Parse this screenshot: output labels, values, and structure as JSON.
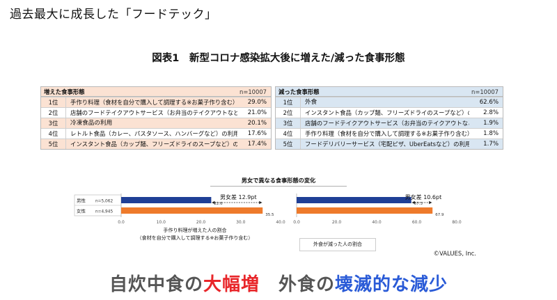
{
  "page_title": "過去最大に成長した「フードテック」",
  "figure_title": "図表1　新型コロナ感染拡大後に増えた/減った食事形態",
  "increased_table": {
    "title": "増えた食事形態",
    "n": "n=10007",
    "rows": [
      {
        "rank": "1位",
        "item": "手作り料理（食材を自分で購入して調理する※お菓子作り含む）",
        "pct": "29.0%"
      },
      {
        "rank": "2位",
        "item": "店舗のフードテイクアウトサービス（お弁当のテイクアウトなど）の利用",
        "pct": "21.0%"
      },
      {
        "rank": "3位",
        "item": "冷凍食品の利用",
        "pct": "20.1%"
      },
      {
        "rank": "4位",
        "item": "レトルト食品（カレー、パスタソース、ハンバーグなど）の利用",
        "pct": "17.6%"
      },
      {
        "rank": "5位",
        "item": "インスタント食品（カップ麺、フリーズドライのスープなど）の利用",
        "pct": "17.4%"
      }
    ]
  },
  "decreased_table": {
    "title": "減った食事形態",
    "n": "n=10007",
    "rows": [
      {
        "rank": "1位",
        "item": "外食",
        "pct": "62.6%"
      },
      {
        "rank": "2位",
        "item": "インスタント食品（カップ麺、フリーズドライのスープなど）の利用",
        "pct": "2.8%"
      },
      {
        "rank": "3位",
        "item": "店舗のフードテイクアウトサービス（お弁当のテイクアウトなど）の利用",
        "pct": "1.9%"
      },
      {
        "rank": "4位",
        "item": "手作り料理（食材を自分で購入して調理する※お菓子作り含む）",
        "pct": "1.8%"
      },
      {
        "rank": "5位",
        "item": "フードデリバリーサービス（宅配ピザ、UberEatsなど）の利用",
        "pct": "1.7%"
      }
    ]
  },
  "chart_title": "男女で異なる食事形態の変化",
  "chart_caption_left_line1": "手作り料理が増えた人の割合",
  "chart_caption_left_line2": "（食材を自分で購入して調理する※お菓子作り含む）",
  "chart_caption_right": "外食が減った人の割合",
  "credit": "©VALUES, Inc.",
  "headline": {
    "part1": "自炊中食の",
    "part2": "大幅増",
    "part3": "　外食の",
    "part4": "壊滅的な減少"
  },
  "colors": {
    "male": "#1f3f96",
    "female": "#ee7a2b",
    "increase_band": "#fbe2d3",
    "decrease_band": "#d9e6f2",
    "headline_red": "#e8262a",
    "headline_blue": "#2a5bd7"
  },
  "chart_data": [
    {
      "type": "bar",
      "orientation": "horizontal",
      "categories": [
        "男性",
        "女性"
      ],
      "category_notes": [
        "n=5,062",
        "n=4,945"
      ],
      "values": [
        22.6,
        35.5
      ],
      "value_labels": [
        "22.6",
        "35.5"
      ],
      "colors": [
        "#1f3f96",
        "#ee7a2b"
      ],
      "xlim": [
        0,
        40
      ],
      "xticks": [
        "0.0",
        "10.0",
        "20.0",
        "30.0",
        "40.0"
      ],
      "annotation": "男女差 12.9pt",
      "xlabel": "手作り料理が増えた人の割合"
    },
    {
      "type": "bar",
      "orientation": "horizontal",
      "categories": [
        "男性",
        "女性"
      ],
      "values": [
        57.3,
        67.9
      ],
      "value_labels": [
        "57.3",
        "67.9"
      ],
      "colors": [
        "#1f3f96",
        "#ee7a2b"
      ],
      "xlim": [
        0,
        80
      ],
      "xticks": [
        "0.0",
        "20.0",
        "40.0",
        "60.0",
        "80.0"
      ],
      "annotation": "男女差 10.6pt",
      "xlabel": "外食が減った人の割合"
    }
  ]
}
